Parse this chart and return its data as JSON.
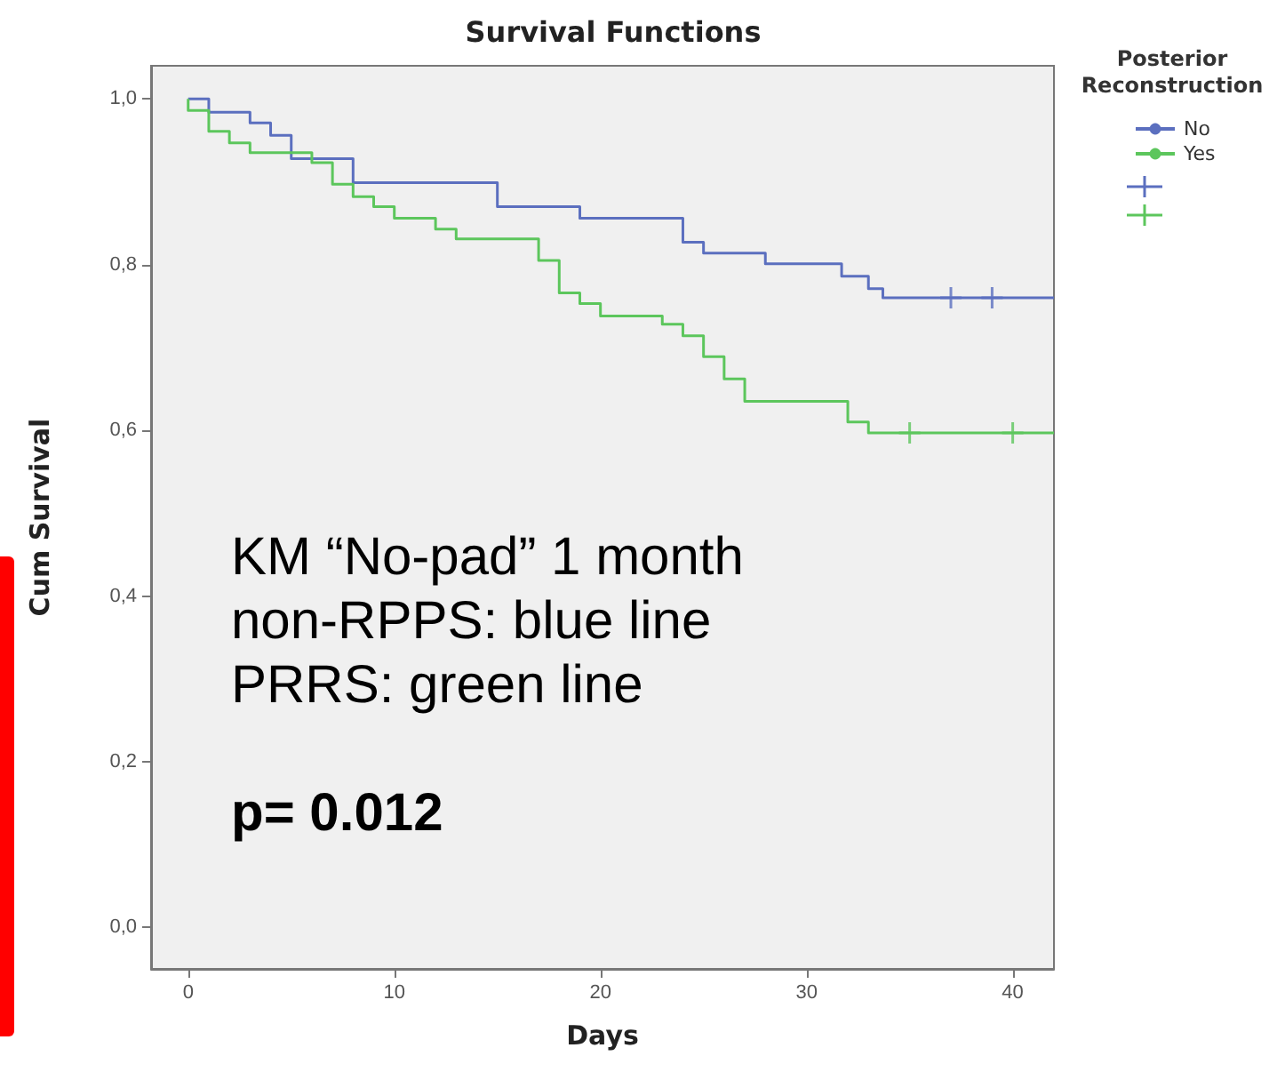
{
  "chart_data": {
    "type": "step",
    "title": "Survival Functions",
    "xlabel": "Days",
    "ylabel": "Cum Survival",
    "legend_title": "Posterior Reconstruction",
    "xlim": [
      -1.8,
      42
    ],
    "xticks": [
      0,
      10,
      20,
      30,
      40
    ],
    "ylim": [
      -0.05,
      1.04
    ],
    "yticks": [
      {
        "value": 0,
        "label": "0,0"
      },
      {
        "value": 0.2,
        "label": "0,2"
      },
      {
        "value": 0.4,
        "label": "0,4"
      },
      {
        "value": 0.6,
        "label": "0,6"
      },
      {
        "value": 0.8,
        "label": "0,8"
      },
      {
        "value": 1,
        "label": "1,0"
      }
    ],
    "grid": false,
    "legend": "top right",
    "series": [
      {
        "name": "No",
        "color": "#5b6fbf",
        "x": [
          0,
          1,
          3,
          4,
          5,
          8,
          15,
          19,
          24,
          25,
          28,
          31.7,
          33,
          33.7,
          42
        ],
        "values": [
          1.0,
          0.984,
          0.971,
          0.956,
          0.928,
          0.899,
          0.87,
          0.856,
          0.827,
          0.814,
          0.801,
          0.786,
          0.771,
          0.76,
          0.76
        ]
      },
      {
        "name": "Yes",
        "color": "#5cc65c",
        "x": [
          0,
          0,
          1,
          2,
          3,
          6,
          7,
          8,
          9,
          10,
          12,
          13,
          17,
          18,
          19,
          20,
          23,
          24,
          25,
          26,
          27,
          32,
          33,
          42
        ],
        "values": [
          1.0,
          0.986,
          0.961,
          0.947,
          0.935,
          0.923,
          0.897,
          0.882,
          0.87,
          0.856,
          0.843,
          0.831,
          0.805,
          0.766,
          0.753,
          0.738,
          0.728,
          0.714,
          0.689,
          0.662,
          0.635,
          0.61,
          0.597,
          0.597
        ]
      },
      {
        "type": "scatter",
        "marker": "cross",
        "color": "#5b6fbf",
        "x": [
          37,
          39
        ],
        "values": [
          0.76,
          0.76
        ]
      },
      {
        "type": "scatter",
        "marker": "cross",
        "color": "#5cc65c",
        "x": [
          35,
          40
        ],
        "values": [
          0.597,
          0.597
        ]
      }
    ],
    "annotations": [
      "KM “No-pad” 1 month",
      "non-RPPS: blue line",
      "PRRS: green line",
      "p= 0.012"
    ]
  }
}
